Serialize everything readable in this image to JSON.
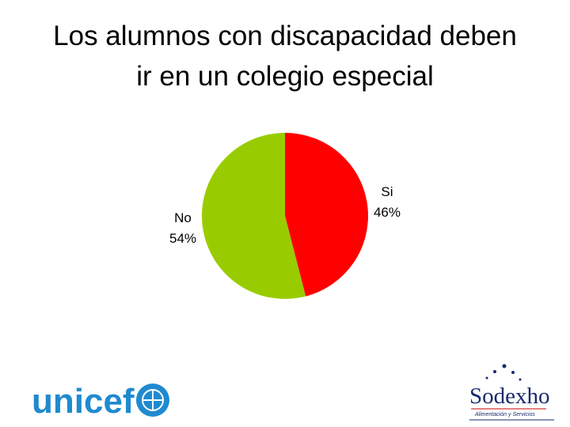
{
  "chart_data": {
    "type": "pie",
    "title": "Los alumnos con discapacidad deben ir en un colegio especial",
    "categories": [
      "Si",
      "No"
    ],
    "values": [
      46,
      54
    ],
    "value_labels": [
      "46%",
      "54%"
    ],
    "colors": [
      "#ff0000",
      "#99cc00"
    ]
  },
  "logos": {
    "left": "unicef",
    "right": "Sodexho",
    "right_tagline": "Alimentación y Servicios"
  }
}
